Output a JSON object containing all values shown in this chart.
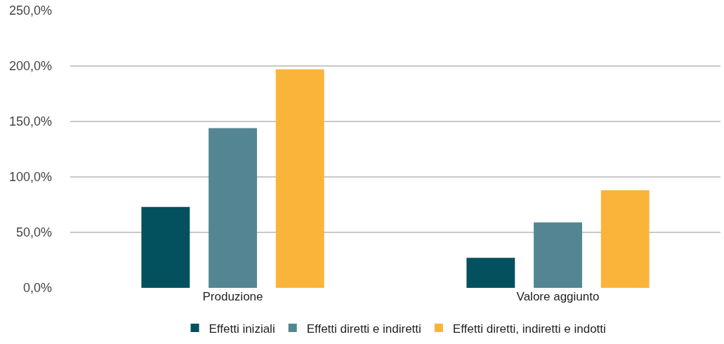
{
  "chart_data": {
    "type": "bar",
    "categories": [
      "Produzione",
      "Valore aggiunto"
    ],
    "series": [
      {
        "name": "Effetti iniziali",
        "color": "#03505f",
        "values": [
          73,
          27
        ]
      },
      {
        "name": "Effetti diretti e indiretti",
        "color": "#538692",
        "values": [
          144,
          59
        ]
      },
      {
        "name": "Effetti diretti, indiretti e indotti",
        "color": "#fbb43a",
        "values": [
          197,
          88
        ]
      }
    ],
    "ylim": [
      0,
      250
    ],
    "yticks": [
      {
        "value": 0,
        "label": "0,0%"
      },
      {
        "value": 50,
        "label": "50,0%"
      },
      {
        "value": 100,
        "label": "100,0%"
      },
      {
        "value": 150,
        "label": "150,0%"
      },
      {
        "value": 200,
        "label": "200,0%"
      },
      {
        "value": 250,
        "label": "250,0%"
      }
    ],
    "grid": "y",
    "legend": "bottom"
  }
}
